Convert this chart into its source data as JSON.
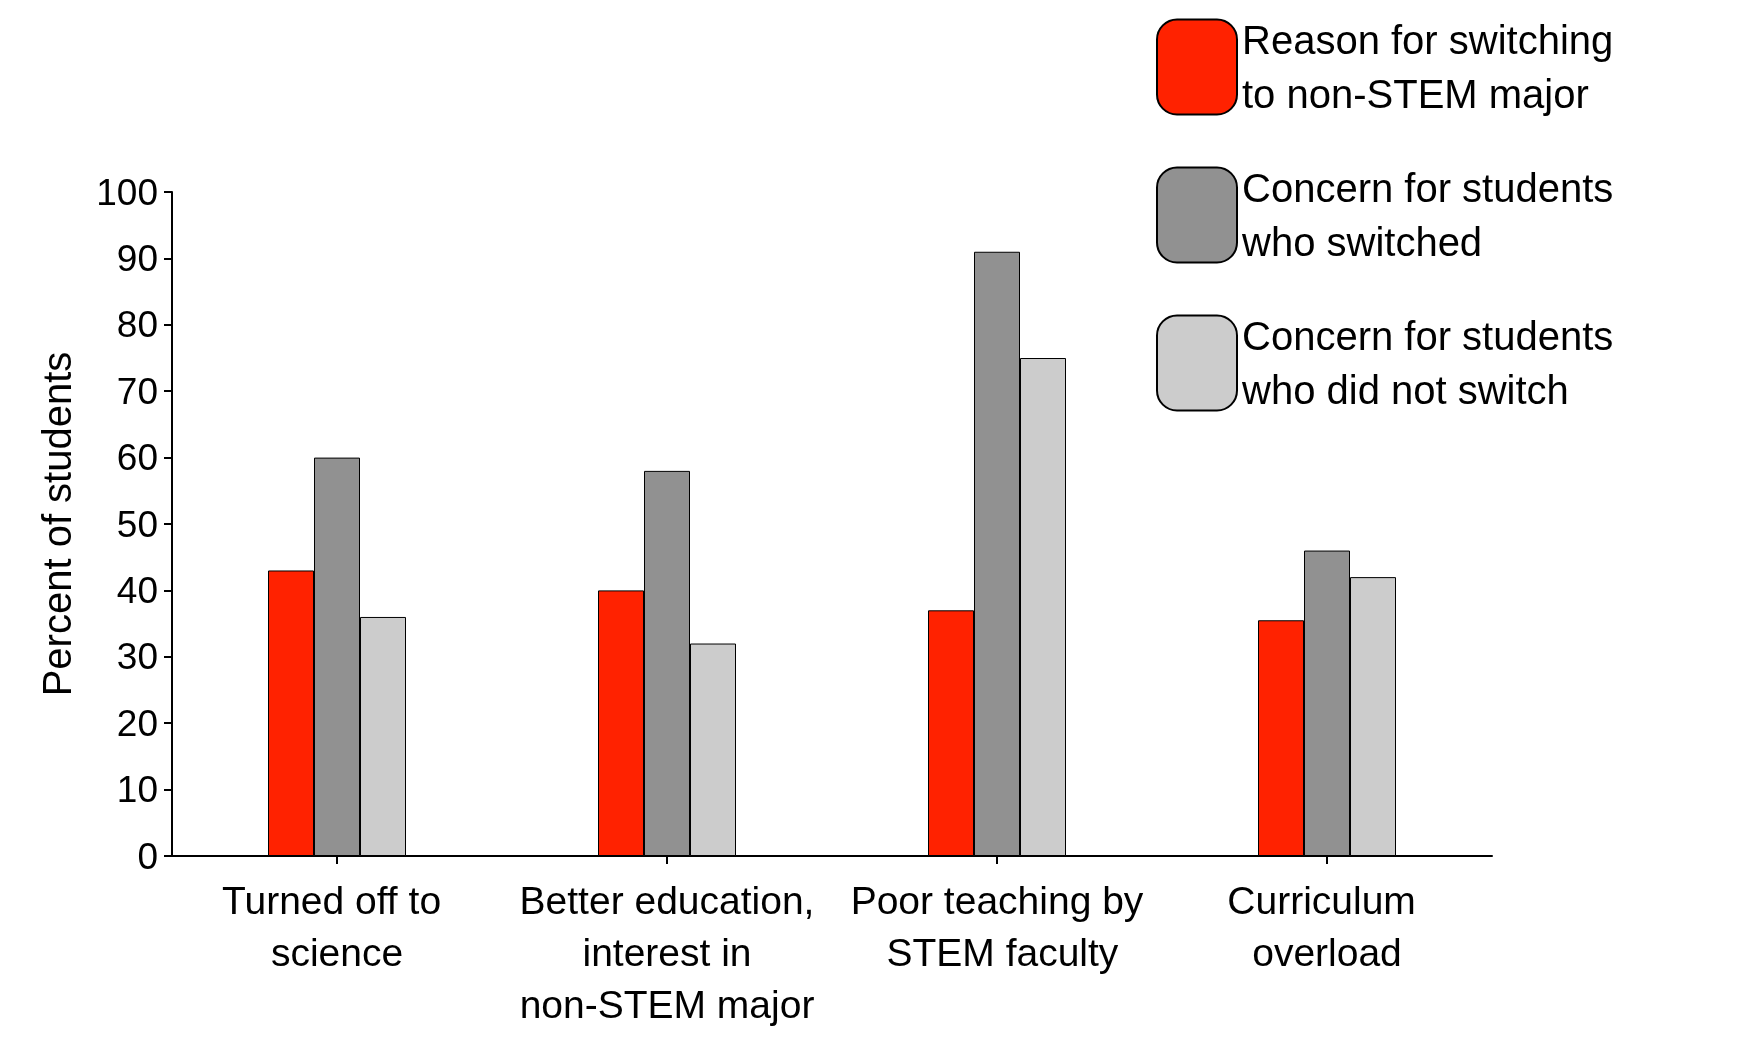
{
  "chart_data": {
    "type": "bar",
    "ylabel": "Percent of students",
    "categories": [
      "Turned off to science",
      "Better education, interest in non-STEM major",
      "Poor teaching by STEM faculty",
      "Curriculum overload"
    ],
    "series": [
      {
        "name": "Reason for switching to non-STEM major",
        "color": "#ff2200",
        "values": [
          43,
          40,
          37,
          35.5
        ]
      },
      {
        "name": "Concern for students who switched",
        "color": "#919191",
        "values": [
          60,
          58,
          91,
          46
        ]
      },
      {
        "name": "Concern for students who did not switch",
        "color": "#cccccc",
        "values": [
          36,
          32,
          75,
          42
        ]
      }
    ],
    "ylim": [
      0,
      100
    ],
    "yticks": [
      0,
      10,
      20,
      30,
      40,
      50,
      60,
      70,
      80,
      90,
      100
    ],
    "grid": false,
    "legend": "top right"
  }
}
